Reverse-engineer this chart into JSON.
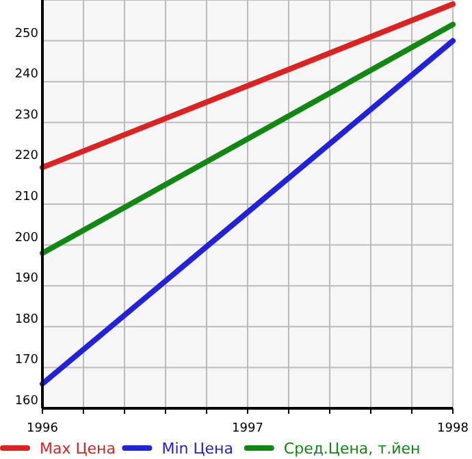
{
  "chart_data": {
    "type": "line",
    "x": [
      1996,
      1997,
      1998
    ],
    "series": [
      {
        "name": "Max Цена",
        "color": "#dd2222",
        "values": [
          219,
          239,
          259
        ]
      },
      {
        "name": "Min Цена",
        "color": "#2222dd",
        "values": [
          166,
          208,
          250
        ]
      },
      {
        "name": "Сред.Цена, т.йен",
        "color": "#118811",
        "values": [
          198,
          226,
          254
        ]
      }
    ],
    "xlim": [
      1996,
      1998
    ],
    "xticks": [
      1996,
      {
        "value": 1996.2,
        "label": null
      },
      {
        "value": 1996.4,
        "label": null
      },
      {
        "value": 1996.6,
        "label": null
      },
      {
        "value": 1996.8,
        "label": null
      },
      1997,
      {
        "value": 1997.2,
        "label": null
      },
      {
        "value": 1997.4,
        "label": null
      },
      {
        "value": 1997.6,
        "label": null
      },
      {
        "value": 1997.8,
        "label": null
      },
      1998
    ],
    "ylim": [
      160,
      260
    ],
    "yticks": [
      160,
      170,
      180,
      190,
      200,
      210,
      220,
      230,
      240,
      250,
      {
        "value": 260,
        "label": null
      }
    ],
    "grid": true,
    "legend": "bottom",
    "marker": "none",
    "line_style": "solid"
  }
}
